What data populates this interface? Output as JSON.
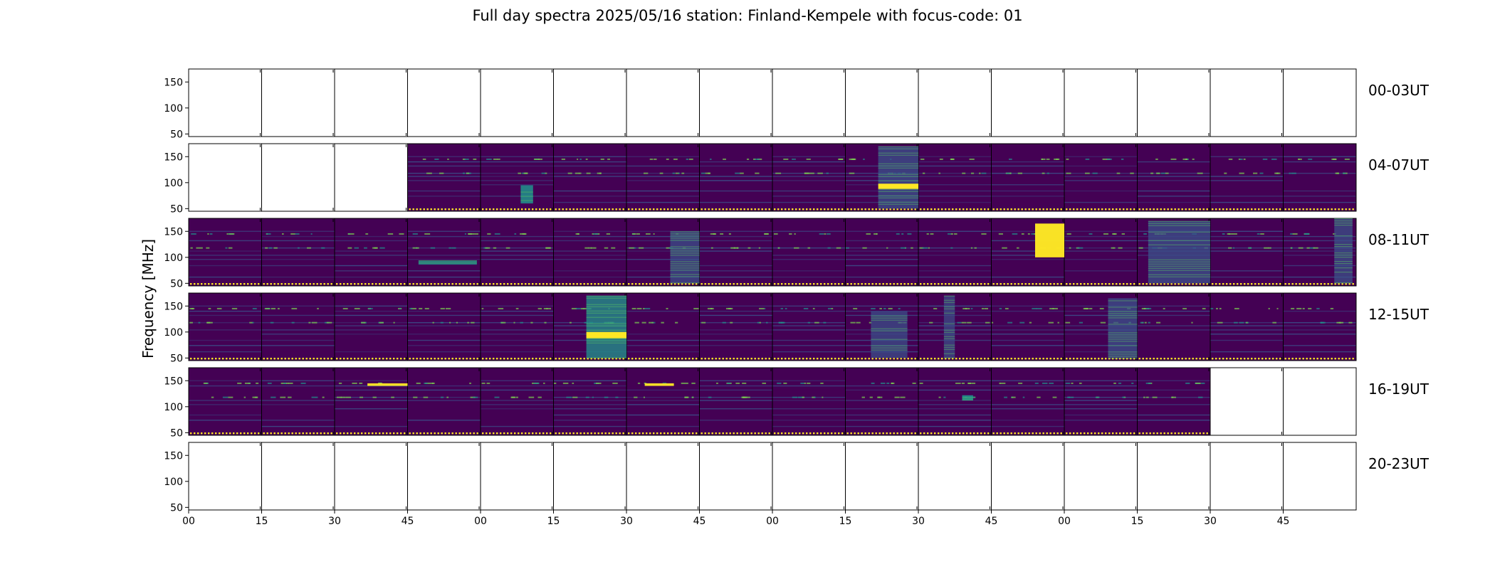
{
  "chart_data": {
    "type": "heatmap",
    "title": "Full day spectra 2025/05/16 station: Finland-Kempele with focus-code: 01",
    "ylabel": "Frequency [MHz]",
    "xlabel": "",
    "y_ticks": [
      50,
      100,
      150
    ],
    "ylim": [
      45,
      175
    ],
    "x_ticks": [
      "00",
      "15",
      "30",
      "45",
      "00",
      "15",
      "30",
      "45",
      "00",
      "15",
      "30",
      "45",
      "00",
      "15",
      "30",
      "45"
    ],
    "colormap": "viridis",
    "grid": false,
    "rows": [
      {
        "label": "00-03UT",
        "has_data": [
          false,
          false,
          false,
          false,
          false,
          false,
          false,
          false,
          false,
          false,
          false,
          false,
          false,
          false,
          false,
          false
        ]
      },
      {
        "label": "04-07UT",
        "has_data": [
          false,
          false,
          false,
          true,
          true,
          true,
          true,
          true,
          true,
          true,
          true,
          true,
          true,
          true,
          true,
          true
        ]
      },
      {
        "label": "08-11UT",
        "has_data": [
          true,
          true,
          true,
          true,
          true,
          true,
          true,
          true,
          true,
          true,
          true,
          true,
          true,
          true,
          true,
          true
        ]
      },
      {
        "label": "12-15UT",
        "has_data": [
          true,
          true,
          true,
          true,
          true,
          true,
          true,
          true,
          true,
          true,
          true,
          true,
          true,
          true,
          true,
          true
        ]
      },
      {
        "label": "16-19UT",
        "has_data": [
          true,
          true,
          true,
          true,
          true,
          true,
          true,
          true,
          true,
          true,
          true,
          true,
          true,
          true,
          false,
          false
        ]
      },
      {
        "label": "20-23UT",
        "has_data": [
          false,
          false,
          false,
          false,
          false,
          false,
          false,
          false,
          false,
          false,
          false,
          false,
          false,
          false,
          false,
          false
        ]
      }
    ],
    "bursts": [
      {
        "row": 1,
        "col": 4,
        "t": [
          0.55,
          0.72
        ],
        "f": [
          60,
          95
        ],
        "intensity": 0.7
      },
      {
        "row": 1,
        "col": 9,
        "t": [
          0.45,
          1.0
        ],
        "f": [
          50,
          170
        ],
        "intensity": 0.45
      },
      {
        "row": 1,
        "col": 9,
        "t": [
          0.45,
          1.0
        ],
        "f": [
          88,
          98
        ],
        "intensity": 1.0
      },
      {
        "row": 2,
        "col": 3,
        "t": [
          0.15,
          0.95
        ],
        "f": [
          86,
          94
        ],
        "intensity": 0.55
      },
      {
        "row": 2,
        "col": 6,
        "t": [
          0.6,
          1.0
        ],
        "f": [
          50,
          150
        ],
        "intensity": 0.35
      },
      {
        "row": 2,
        "col": 11,
        "t": [
          0.6,
          1.0
        ],
        "f": [
          100,
          165
        ],
        "intensity": 0.95
      },
      {
        "row": 2,
        "col": 13,
        "t": [
          0.15,
          1.0
        ],
        "f": [
          50,
          170
        ],
        "intensity": 0.45
      },
      {
        "row": 2,
        "col": 15,
        "t": [
          0.7,
          0.95
        ],
        "f": [
          50,
          175
        ],
        "intensity": 0.4
      },
      {
        "row": 3,
        "col": 5,
        "t": [
          0.45,
          1.0
        ],
        "f": [
          50,
          170
        ],
        "intensity": 0.5
      },
      {
        "row": 3,
        "col": 5,
        "t": [
          0.45,
          1.0
        ],
        "f": [
          88,
          100
        ],
        "intensity": 1.0
      },
      {
        "row": 3,
        "col": 9,
        "t": [
          0.35,
          0.85
        ],
        "f": [
          50,
          140
        ],
        "intensity": 0.35
      },
      {
        "row": 3,
        "col": 10,
        "t": [
          0.35,
          0.5
        ],
        "f": [
          50,
          170
        ],
        "intensity": 0.3
      },
      {
        "row": 3,
        "col": 12,
        "t": [
          0.6,
          1.0
        ],
        "f": [
          50,
          165
        ],
        "intensity": 0.45
      },
      {
        "row": 4,
        "col": 2,
        "t": [
          0.45,
          1.0
        ],
        "f": [
          140,
          145
        ],
        "intensity": 0.9
      },
      {
        "row": 4,
        "col": 6,
        "t": [
          0.25,
          0.65
        ],
        "f": [
          140,
          145
        ],
        "intensity": 0.9
      },
      {
        "row": 4,
        "col": 10,
        "t": [
          0.6,
          0.75
        ],
        "f": [
          112,
          122
        ],
        "intensity": 0.8
      }
    ]
  },
  "colors": {
    "background": "#440154",
    "noise": "#3b528b",
    "hot": "#fde725",
    "mid": "#21918c"
  }
}
